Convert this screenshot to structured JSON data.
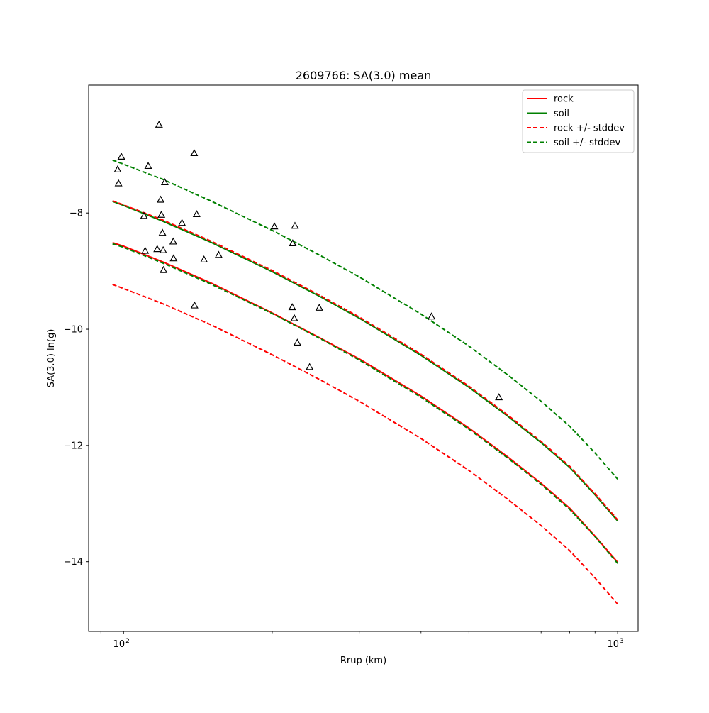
{
  "chart_data": {
    "type": "scatter",
    "title": "2609766: SA(3.0) mean",
    "xlabel": "Rrup (km)",
    "ylabel": "SA(3.0) ln(g)",
    "x_scale": "log",
    "xlim": [
      85,
      1100
    ],
    "ylim": [
      -15.2,
      -5.8
    ],
    "x_major_ticks": [
      {
        "value": 100,
        "base": "10",
        "exp": "2"
      },
      {
        "value": 1000,
        "base": "10",
        "exp": "3"
      }
    ],
    "x_minor_ticks": [
      90,
      200,
      300,
      400,
      500,
      600,
      700,
      800,
      900
    ],
    "y_ticks": [
      {
        "value": -8,
        "label": "−8"
      },
      {
        "value": -10,
        "label": "−10"
      },
      {
        "value": -12,
        "label": "−12"
      },
      {
        "value": -14,
        "label": "−14"
      }
    ],
    "grid": false,
    "legend_position": "top-right",
    "colors": {
      "rock": "#ff0000",
      "soil": "#008000",
      "observed": "#000000"
    },
    "legend": [
      {
        "label": "rock",
        "color": "#ff0000",
        "dash": "solid"
      },
      {
        "label": "soil",
        "color": "#008000",
        "dash": "solid"
      },
      {
        "label": "rock +/- stddev",
        "color": "#ff0000",
        "dash": "dashed"
      },
      {
        "label": "soil +/- stddev",
        "color": "#008000",
        "dash": "dashed"
      }
    ],
    "curve_x": [
      95,
      100,
      120,
      150,
      200,
      250,
      300,
      400,
      500,
      600,
      700,
      800,
      900,
      1000
    ],
    "series": [
      {
        "name": "rock",
        "group": "rock",
        "dash": "solid",
        "color": "#ff0000",
        "y": [
          -8.51,
          -8.57,
          -8.84,
          -9.2,
          -9.72,
          -10.15,
          -10.51,
          -11.15,
          -11.7,
          -12.2,
          -12.65,
          -13.08,
          -13.56,
          -14.01
        ]
      },
      {
        "name": "soil",
        "group": "soil",
        "dash": "solid",
        "color": "#008000",
        "y": [
          -7.8,
          -7.87,
          -8.14,
          -8.5,
          -9.01,
          -9.44,
          -9.81,
          -10.45,
          -11.0,
          -11.5,
          -11.95,
          -12.38,
          -12.85,
          -13.3
        ]
      },
      {
        "name": "rock + stddev",
        "group": "rock +/- stddev",
        "dash": "dashed",
        "color": "#ff0000",
        "y": [
          -7.79,
          -7.86,
          -8.12,
          -8.48,
          -8.99,
          -9.42,
          -9.79,
          -10.43,
          -10.98,
          -11.48,
          -11.93,
          -12.36,
          -12.83,
          -13.28
        ]
      },
      {
        "name": "rock - stddev",
        "group": "rock +/- stddev",
        "dash": "dashed",
        "color": "#ff0000",
        "y": [
          -9.23,
          -9.3,
          -9.56,
          -9.92,
          -10.44,
          -10.87,
          -11.24,
          -11.88,
          -12.43,
          -12.93,
          -13.38,
          -13.81,
          -14.28,
          -14.73
        ]
      },
      {
        "name": "soil + stddev",
        "group": "soil +/- stddev",
        "dash": "dashed",
        "color": "#008000",
        "y": [
          -7.09,
          -7.16,
          -7.42,
          -7.79,
          -8.3,
          -8.73,
          -9.1,
          -9.74,
          -10.29,
          -10.79,
          -11.24,
          -11.67,
          -12.13,
          -12.58
        ]
      },
      {
        "name": "soil - stddev",
        "group": "soil +/- stddev",
        "dash": "dashed",
        "color": "#008000",
        "y": [
          -8.53,
          -8.59,
          -8.86,
          -9.22,
          -9.73,
          -10.16,
          -10.53,
          -11.17,
          -11.72,
          -12.22,
          -12.67,
          -13.1,
          -13.57,
          -14.03
        ]
      }
    ],
    "observations": {
      "marker": "triangle",
      "color": "#000000",
      "points": [
        {
          "x": 97.3,
          "y": -7.25
        },
        {
          "x": 97.7,
          "y": -7.49
        },
        {
          "x": 99.0,
          "y": -7.03
        },
        {
          "x": 110.0,
          "y": -8.05
        },
        {
          "x": 110.6,
          "y": -8.65
        },
        {
          "x": 112.2,
          "y": -7.19
        },
        {
          "x": 117.0,
          "y": -8.62
        },
        {
          "x": 118.0,
          "y": -6.48
        },
        {
          "x": 118.9,
          "y": -7.77
        },
        {
          "x": 119.3,
          "y": -8.03
        },
        {
          "x": 119.9,
          "y": -8.34
        },
        {
          "x": 120.3,
          "y": -8.64
        },
        {
          "x": 120.5,
          "y": -8.98
        },
        {
          "x": 121.2,
          "y": -7.47
        },
        {
          "x": 126.1,
          "y": -8.49
        },
        {
          "x": 126.3,
          "y": -8.78
        },
        {
          "x": 131.3,
          "y": -8.17
        },
        {
          "x": 139.0,
          "y": -6.97
        },
        {
          "x": 139.2,
          "y": -9.59
        },
        {
          "x": 140.6,
          "y": -8.02
        },
        {
          "x": 145.5,
          "y": -8.8
        },
        {
          "x": 155.8,
          "y": -8.72
        },
        {
          "x": 202.0,
          "y": -8.23
        },
        {
          "x": 219.5,
          "y": -9.62
        },
        {
          "x": 220.0,
          "y": -8.52
        },
        {
          "x": 221.6,
          "y": -9.81
        },
        {
          "x": 222.3,
          "y": -8.22
        },
        {
          "x": 224.8,
          "y": -10.23
        },
        {
          "x": 238.0,
          "y": -10.65
        },
        {
          "x": 249.0,
          "y": -9.63
        },
        {
          "x": 420.0,
          "y": -9.78
        },
        {
          "x": 575.0,
          "y": -11.17
        }
      ]
    }
  }
}
